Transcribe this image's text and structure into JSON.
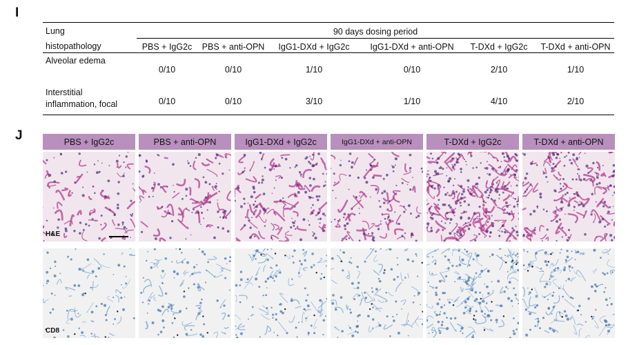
{
  "panel_i": {
    "letter": "I",
    "header_left_line1": "Lung",
    "header_left_line2": "histopathology",
    "period_label": "90 days dosing period",
    "groups": [
      "PBS + IgG2c",
      "PBS + anti-OPN",
      "IgG1-DXd + IgG2c",
      "IgG1-DXd + anti-OPN",
      "T-DXd + IgG2c",
      "T-DXd + anti-OPN"
    ],
    "rows": [
      {
        "label": "Alveolar edema",
        "values": [
          "0/10",
          "0/10",
          "1/10",
          "0/10",
          "2/10",
          "1/10"
        ]
      },
      {
        "label_line1": "Interstitial",
        "label_line2": "inflammation, focal",
        "values": [
          "0/10",
          "0/10",
          "3/10",
          "1/10",
          "4/10",
          "2/10"
        ]
      }
    ]
  },
  "panel_j": {
    "letter": "J",
    "headers": [
      "PBS + IgG2c",
      "PBS + anti-OPN",
      "IgG1-DXd + IgG2c",
      "IgG1-DXd + anti-OPN",
      "T-DXd + IgG2c",
      "T-DXd + anti-OPN"
    ],
    "he_label": "H&E",
    "cd8_label": "CD8",
    "colors": {
      "header_bg": "#b98fbd",
      "he_stain": "#b23d8c",
      "he_bg": "#f2e6ee",
      "cd8_stain": "#6f9fcf",
      "cd8_bg": "#f1f1f1"
    }
  }
}
